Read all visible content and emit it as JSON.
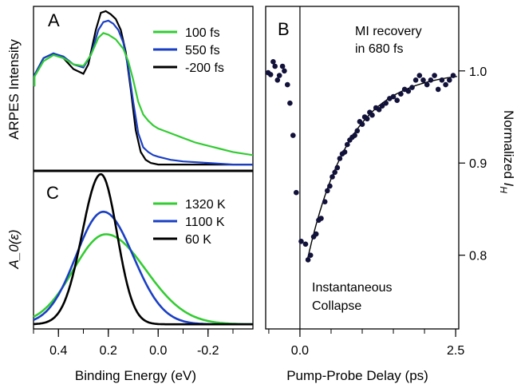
{
  "colors": {
    "green": "#33cc33",
    "blue": "#1a3fc4",
    "black": "#000000",
    "dots": "#11113a"
  },
  "chart_data": [
    {
      "panel": "A",
      "type": "line",
      "ylabel": "ARPES Intensity",
      "xlim": [
        0.5,
        -0.38
      ],
      "series": [
        {
          "name": "100 fs",
          "color": "#33cc33",
          "x": [
            0.52,
            0.5,
            0.46,
            0.42,
            0.38,
            0.34,
            0.3,
            0.27,
            0.24,
            0.22,
            0.2,
            0.17,
            0.14,
            0.12,
            0.1,
            0.08,
            0.06,
            0.04,
            0.02,
            0.0,
            -0.05,
            -0.1,
            -0.15,
            -0.2,
            -0.25,
            -0.3,
            -0.38
          ],
          "y": [
            0.52,
            0.58,
            0.68,
            0.72,
            0.7,
            0.66,
            0.65,
            0.72,
            0.83,
            0.86,
            0.85,
            0.82,
            0.76,
            0.68,
            0.56,
            0.42,
            0.34,
            0.3,
            0.27,
            0.25,
            0.22,
            0.19,
            0.16,
            0.14,
            0.12,
            0.1,
            0.08
          ]
        },
        {
          "name": "550 fs",
          "color": "#1a3fc4",
          "x": [
            0.52,
            0.5,
            0.46,
            0.42,
            0.38,
            0.34,
            0.3,
            0.27,
            0.24,
            0.22,
            0.2,
            0.18,
            0.16,
            0.14,
            0.12,
            0.1,
            0.08,
            0.06,
            0.04,
            0.02,
            0.0,
            -0.05,
            -0.1,
            -0.2,
            -0.3,
            -0.38
          ],
          "y": [
            0.52,
            0.59,
            0.7,
            0.73,
            0.71,
            0.66,
            0.64,
            0.72,
            0.88,
            0.93,
            0.94,
            0.92,
            0.88,
            0.8,
            0.64,
            0.42,
            0.22,
            0.13,
            0.1,
            0.08,
            0.07,
            0.05,
            0.04,
            0.03,
            0.02,
            0.02
          ]
        },
        {
          "name": "-200 fs",
          "color": "#000000",
          "x": [
            0.52,
            0.5,
            0.46,
            0.42,
            0.38,
            0.34,
            0.3,
            0.28,
            0.25,
            0.23,
            0.21,
            0.19,
            0.17,
            0.15,
            0.13,
            0.11,
            0.09,
            0.07,
            0.05,
            0.03,
            0.0,
            -0.05,
            -0.1,
            -0.2,
            -0.3,
            -0.38
          ],
          "y": [
            0.52,
            0.59,
            0.7,
            0.73,
            0.7,
            0.63,
            0.6,
            0.66,
            0.88,
            0.99,
            1.0,
            0.98,
            0.95,
            0.88,
            0.74,
            0.5,
            0.24,
            0.1,
            0.05,
            0.03,
            0.02,
            0.02,
            0.02,
            0.02,
            0.02,
            0.02
          ]
        }
      ]
    },
    {
      "panel": "C",
      "type": "line",
      "ylabel": "A_0(ε)",
      "xlabel": "Binding Energy (eV)",
      "xlim": [
        0.5,
        -0.38
      ],
      "xticks": [
        0.4,
        0.2,
        0.0,
        -0.2
      ],
      "xticklabels": [
        "0.4",
        "0.2",
        "0.0",
        "-0.2"
      ],
      "series": [
        {
          "name": "1320 K",
          "color": "#33cc33",
          "center": 0.21,
          "width_low": 0.13,
          "width_high": 0.16,
          "peak": 0.6
        },
        {
          "name": "1100 K",
          "color": "#1a3fc4",
          "center": 0.22,
          "width_low": 0.11,
          "width_high": 0.12,
          "peak": 0.75
        },
        {
          "name": "60 K",
          "color": "#000000",
          "center": 0.23,
          "width_low": 0.075,
          "width_high": 0.065,
          "peak": 1.0
        }
      ]
    },
    {
      "panel": "B",
      "type": "scatter",
      "xlabel": "Pump-Probe Delay (ps)",
      "ylabel_main": "Normalized ",
      "ylabel_sub": "H",
      "ylabel_italic": "I",
      "xlim": [
        -0.55,
        2.55
      ],
      "ylim": [
        0.72,
        1.07
      ],
      "xticks": [
        0.0,
        2.5
      ],
      "xticklabels": [
        "0.0",
        "2.5"
      ],
      "yticks": [
        0.8,
        0.9,
        1.0
      ],
      "yticklabels": [
        "0.8",
        "0.9",
        "1.0"
      ],
      "annotation_top": [
        "MI recovery",
        "in 680 fs"
      ],
      "annotation_bottom": [
        "Instantaneous",
        "Collapse"
      ],
      "fit": {
        "y0": 0.795,
        "amp": 0.205,
        "tau_ps": 0.68,
        "t0": 0.12
      },
      "points": [
        [
          -0.51,
          0.998
        ],
        [
          -0.47,
          0.996
        ],
        [
          -0.43,
          1.01
        ],
        [
          -0.4,
          1.005
        ],
        [
          -0.36,
          0.99
        ],
        [
          -0.33,
          0.995
        ],
        [
          -0.28,
          1.005
        ],
        [
          -0.25,
          1.0
        ],
        [
          -0.2,
          0.985
        ],
        [
          -0.16,
          0.965
        ],
        [
          -0.11,
          0.93
        ],
        [
          -0.06,
          0.868
        ],
        [
          0.02,
          0.815
        ],
        [
          0.09,
          0.812
        ],
        [
          0.13,
          0.795
        ],
        [
          0.17,
          0.8
        ],
        [
          0.22,
          0.82
        ],
        [
          0.26,
          0.823
        ],
        [
          0.3,
          0.838
        ],
        [
          0.34,
          0.84
        ],
        [
          0.4,
          0.858
        ],
        [
          0.44,
          0.87
        ],
        [
          0.48,
          0.875
        ],
        [
          0.52,
          0.885
        ],
        [
          0.56,
          0.89
        ],
        [
          0.6,
          0.895
        ],
        [
          0.64,
          0.905
        ],
        [
          0.68,
          0.91
        ],
        [
          0.72,
          0.912
        ],
        [
          0.76,
          0.92
        ],
        [
          0.8,
          0.925
        ],
        [
          0.84,
          0.928
        ],
        [
          0.88,
          0.93
        ],
        [
          0.92,
          0.935
        ],
        [
          0.96,
          0.945
        ],
        [
          1.0,
          0.942
        ],
        [
          1.04,
          0.95
        ],
        [
          1.08,
          0.948
        ],
        [
          1.12,
          0.955
        ],
        [
          1.16,
          0.952
        ],
        [
          1.22,
          0.96
        ],
        [
          1.27,
          0.958
        ],
        [
          1.32,
          0.962
        ],
        [
          1.38,
          0.965
        ],
        [
          1.44,
          0.97
        ],
        [
          1.5,
          0.972
        ],
        [
          1.56,
          0.968
        ],
        [
          1.62,
          0.975
        ],
        [
          1.68,
          0.98
        ],
        [
          1.74,
          0.978
        ],
        [
          1.8,
          0.982
        ],
        [
          1.86,
          0.99
        ],
        [
          1.92,
          0.995
        ],
        [
          1.98,
          0.99
        ],
        [
          2.04,
          0.985
        ],
        [
          2.1,
          0.99
        ],
        [
          2.16,
          0.995
        ],
        [
          2.22,
          0.98
        ],
        [
          2.28,
          0.99
        ],
        [
          2.34,
          0.985
        ],
        [
          2.4,
          0.99
        ],
        [
          2.46,
          0.995
        ]
      ]
    }
  ],
  "labels": {
    "panelA": "A",
    "panelB": "B",
    "panelC": "C"
  }
}
